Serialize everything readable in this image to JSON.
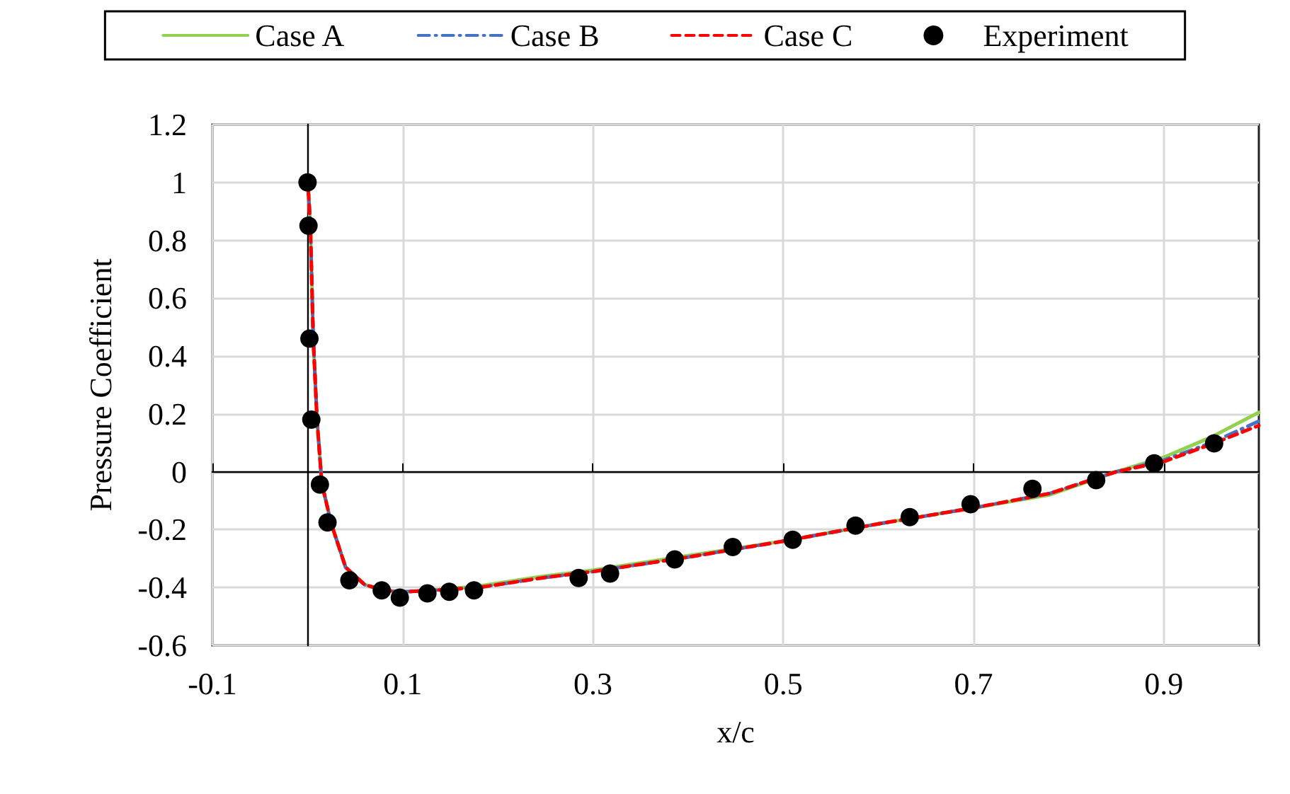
{
  "chart_data": {
    "type": "line",
    "xlabel": "x/c",
    "ylabel": "Pressure Coefficient",
    "xlim": [
      -0.1,
      1.0
    ],
    "xticks": [
      -0.1,
      0.1,
      0.3,
      0.5,
      0.7,
      0.9
    ],
    "ylim": [
      -0.6,
      1.2
    ],
    "yticks": [
      -0.6,
      -0.4,
      -0.2,
      0,
      0.2,
      0.4,
      0.6,
      0.8,
      1,
      1.2
    ],
    "grid": true,
    "legend": "top",
    "series": [
      {
        "name": "Case A",
        "color": "#92d050",
        "line_style": "solid",
        "marker": "none",
        "x": [
          0,
          0.003,
          0.006,
          0.01,
          0.015,
          0.025,
          0.04,
          0.06,
          0.08,
          0.1,
          0.13,
          0.18,
          0.25,
          0.3,
          0.4,
          0.5,
          0.6,
          0.7,
          0.78,
          0.85,
          0.9,
          0.95,
          1.0
        ],
        "values": [
          1.02,
          0.85,
          0.46,
          0.18,
          -0.04,
          -0.18,
          -0.33,
          -0.39,
          -0.41,
          -0.415,
          -0.41,
          -0.395,
          -0.36,
          -0.34,
          -0.29,
          -0.24,
          -0.18,
          -0.125,
          -0.08,
          0,
          0.05,
          0.12,
          0.205
        ]
      },
      {
        "name": "Case B",
        "color": "#4472c4",
        "line_style": "dashdot",
        "marker": "none",
        "x": [
          0,
          0.003,
          0.006,
          0.01,
          0.015,
          0.025,
          0.04,
          0.06,
          0.08,
          0.1,
          0.13,
          0.18,
          0.25,
          0.3,
          0.4,
          0.5,
          0.6,
          0.7,
          0.78,
          0.85,
          0.9,
          0.95,
          1.0
        ],
        "values": [
          1.02,
          0.85,
          0.46,
          0.18,
          -0.04,
          -0.18,
          -0.33,
          -0.39,
          -0.41,
          -0.415,
          -0.41,
          -0.4,
          -0.365,
          -0.345,
          -0.295,
          -0.24,
          -0.18,
          -0.125,
          -0.075,
          0,
          0.04,
          0.1,
          0.175
        ]
      },
      {
        "name": "Case C",
        "color": "#ff0000",
        "line_style": "dashed",
        "marker": "none",
        "x": [
          0,
          0.003,
          0.006,
          0.01,
          0.015,
          0.025,
          0.04,
          0.06,
          0.08,
          0.1,
          0.13,
          0.18,
          0.25,
          0.3,
          0.4,
          0.5,
          0.6,
          0.7,
          0.78,
          0.85,
          0.9,
          0.95,
          1.0
        ],
        "values": [
          1.02,
          0.85,
          0.46,
          0.18,
          -0.04,
          -0.18,
          -0.33,
          -0.39,
          -0.41,
          -0.415,
          -0.41,
          -0.4,
          -0.365,
          -0.345,
          -0.295,
          -0.24,
          -0.18,
          -0.125,
          -0.075,
          0,
          0.035,
          0.095,
          0.16
        ]
      },
      {
        "name": "Experiment",
        "type": "scatter",
        "color": "#000000",
        "marker": "circle",
        "x": [
          0,
          0.001,
          0.002,
          0.004,
          0.013,
          0.021,
          0.044,
          0.078,
          0.097,
          0.126,
          0.149,
          0.175,
          0.285,
          0.318,
          0.386,
          0.447,
          0.51,
          0.576,
          0.633,
          0.697,
          0.762,
          0.829,
          0.89,
          0.953
        ],
        "values": [
          1.0,
          0.85,
          0.46,
          0.18,
          -0.044,
          -0.175,
          -0.375,
          -0.41,
          -0.435,
          -0.42,
          -0.415,
          -0.41,
          -0.367,
          -0.352,
          -0.303,
          -0.26,
          -0.235,
          -0.186,
          -0.157,
          -0.112,
          -0.059,
          -0.029,
          0.029,
          0.098
        ]
      }
    ]
  }
}
